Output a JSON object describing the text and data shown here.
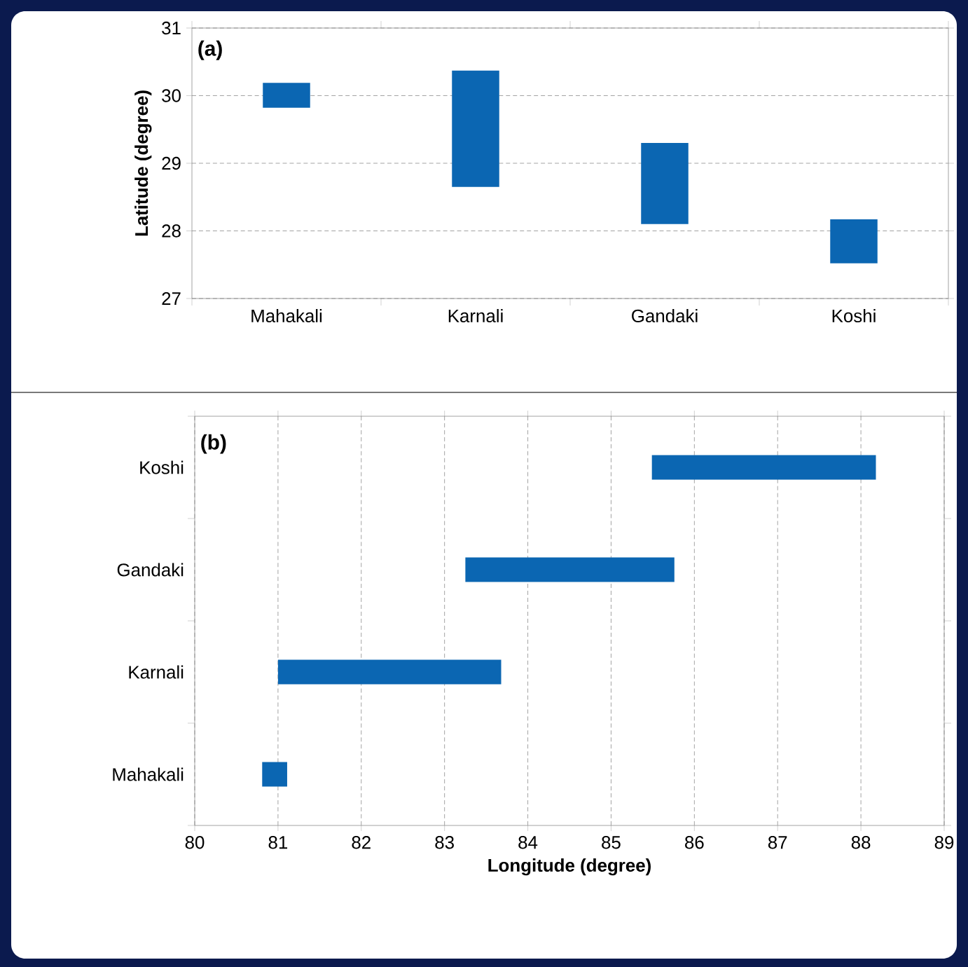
{
  "chart_data": [
    {
      "type": "bar",
      "categories": [
        "Mahakali",
        "Karnali",
        "Gandaki",
        "Koshi"
      ],
      "base": [
        29.82,
        28.65,
        28.1,
        27.52
      ],
      "values": [
        0.37,
        1.72,
        1.2,
        0.65
      ],
      "color": "#0b66b2",
      "ylabel": "Latitude (degree)",
      "ylim": [
        27,
        31
      ],
      "yticks": [
        27,
        28,
        29,
        30,
        31
      ],
      "grid": "y",
      "annotations": [
        "(a)"
      ]
    },
    {
      "type": "bar",
      "orientation": "horizontal",
      "categories": [
        "Koshi",
        "Gandaki",
        "Karnali",
        "Mahakali"
      ],
      "base": [
        85.49,
        83.25,
        81.0,
        80.81
      ],
      "values": [
        2.69,
        2.51,
        2.68,
        0.3
      ],
      "color": "#0b66b2",
      "xlabel": "Longitude (degree)",
      "xlim": [
        80,
        89
      ],
      "xticks": [
        80,
        81,
        82,
        83,
        84,
        85,
        86,
        87,
        88,
        89
      ],
      "grid": "x",
      "annotations": [
        "(b)"
      ]
    }
  ]
}
